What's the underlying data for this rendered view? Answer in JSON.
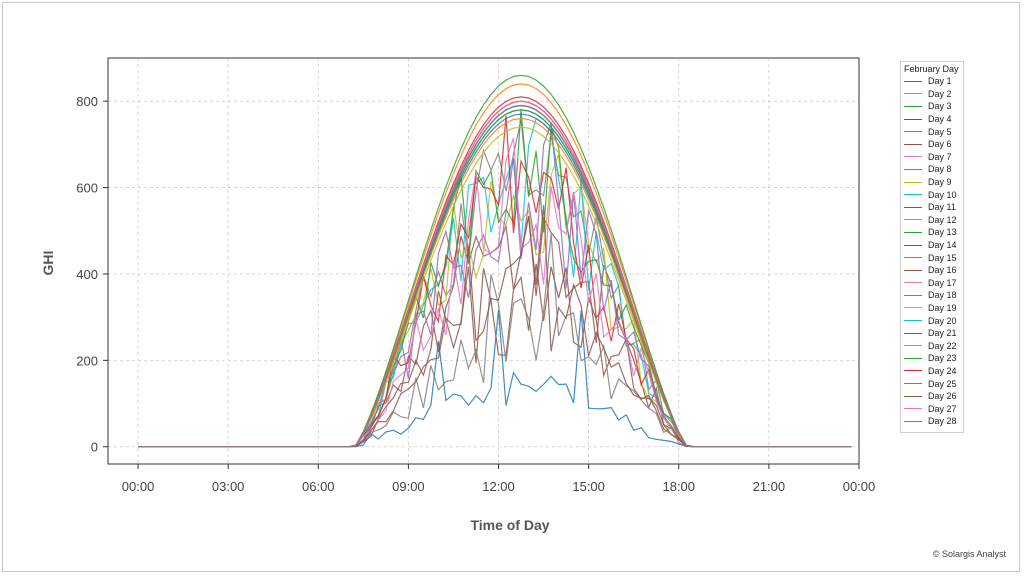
{
  "credit": "© Solargis Analyst",
  "chart_data": {
    "type": "line",
    "title": "",
    "xlabel": "Time of Day",
    "ylabel": "GHI",
    "xlim": [
      -1,
      24
    ],
    "ylim": [
      -40,
      900
    ],
    "x_ticks": [
      {
        "value": 0,
        "label": "00:00"
      },
      {
        "value": 3,
        "label": "03:00"
      },
      {
        "value": 6,
        "label": "06:00"
      },
      {
        "value": 9,
        "label": "09:00"
      },
      {
        "value": 12,
        "label": "12:00"
      },
      {
        "value": 15,
        "label": "15:00"
      },
      {
        "value": 18,
        "label": "18:00"
      },
      {
        "value": 21,
        "label": "21:00"
      },
      {
        "value": 24,
        "label": "00:00"
      }
    ],
    "y_ticks": [
      0,
      200,
      400,
      600,
      800
    ],
    "grid": true,
    "legend": {
      "title": "February Day",
      "placement": "right"
    },
    "series": [
      {
        "name": "Day 1",
        "color": "#1f77b4",
        "peak": 790,
        "cloud": 0.0,
        "clear_frac": 1.0
      },
      {
        "name": "Day 2",
        "color": "#ff7f0e",
        "peak": 840,
        "cloud": 0.0,
        "clear_frac": 1.0
      },
      {
        "name": "Day 3",
        "color": "#2ca02c",
        "peak": 860,
        "cloud": 0.0,
        "clear_frac": 1.0
      },
      {
        "name": "Day 4",
        "color": "#d62728",
        "peak": 810,
        "cloud": 0.0,
        "clear_frac": 1.0
      },
      {
        "name": "Day 5",
        "color": "#9467bd",
        "peak": 800,
        "cloud": 0.0,
        "clear_frac": 1.0
      },
      {
        "name": "Day 6",
        "color": "#8c564b",
        "peak": 740,
        "cloud": 0.55,
        "clear_frac": 0.55
      },
      {
        "name": "Day 7",
        "color": "#e377c2",
        "peak": 780,
        "cloud": 0.0,
        "clear_frac": 1.0
      },
      {
        "name": "Day 8",
        "color": "#7f7f7f",
        "peak": 760,
        "cloud": 0.35,
        "clear_frac": 0.9
      },
      {
        "name": "Day 9",
        "color": "#bcbd22",
        "peak": 750,
        "cloud": 0.45,
        "clear_frac": 0.85
      },
      {
        "name": "Day 10",
        "color": "#17becf",
        "peak": 770,
        "cloud": 0.4,
        "clear_frac": 0.9
      },
      {
        "name": "Day 11",
        "color": "#1f77b4",
        "peak": 780,
        "cloud": 0.9,
        "clear_frac": 0.15
      },
      {
        "name": "Day 12",
        "color": "#ff7f0e",
        "peak": 790,
        "cloud": 0.0,
        "clear_frac": 1.0
      },
      {
        "name": "Day 13",
        "color": "#2ca02c",
        "peak": 780,
        "cloud": 0.4,
        "clear_frac": 0.85
      },
      {
        "name": "Day 14",
        "color": "#d62728",
        "peak": 800,
        "cloud": 0.5,
        "clear_frac": 0.7
      },
      {
        "name": "Day 15",
        "color": "#9467bd",
        "peak": 790,
        "cloud": 0.5,
        "clear_frac": 0.8
      },
      {
        "name": "Day 16",
        "color": "#8c564b",
        "peak": 780,
        "cloud": 0.75,
        "clear_frac": 0.45
      },
      {
        "name": "Day 17",
        "color": "#e377c2",
        "peak": 760,
        "cloud": 0.55,
        "clear_frac": 0.75
      },
      {
        "name": "Day 18",
        "color": "#7f7f7f",
        "peak": 780,
        "cloud": 0.8,
        "clear_frac": 0.3
      },
      {
        "name": "Day 19",
        "color": "#bcbd22",
        "peak": 740,
        "cloud": 0.0,
        "clear_frac": 1.0
      },
      {
        "name": "Day 20",
        "color": "#17becf",
        "peak": 780,
        "cloud": 0.0,
        "clear_frac": 1.0
      },
      {
        "name": "Day 21",
        "color": "#1f77b4",
        "peak": 770,
        "cloud": 0.0,
        "clear_frac": 1.0
      },
      {
        "name": "Day 22",
        "color": "#ff7f0e",
        "peak": 760,
        "cloud": 0.0,
        "clear_frac": 1.0
      },
      {
        "name": "Day 23",
        "color": "#2ca02c",
        "peak": 780,
        "cloud": 0.0,
        "clear_frac": 1.0
      },
      {
        "name": "Day 24",
        "color": "#d62728",
        "peak": 800,
        "cloud": 0.0,
        "clear_frac": 1.0
      },
      {
        "name": "Day 25",
        "color": "#9467bd",
        "peak": 790,
        "cloud": 0.0,
        "clear_frac": 1.0
      },
      {
        "name": "Day 26",
        "color": "#8c564b",
        "peak": 770,
        "cloud": 0.7,
        "clear_frac": 0.4
      },
      {
        "name": "Day 27",
        "color": "#e377c2",
        "peak": 800,
        "cloud": 0.0,
        "clear_frac": 1.0
      },
      {
        "name": "Day 28",
        "color": "#7f7f7f",
        "peak": 790,
        "cloud": 0.0,
        "clear_frac": 1.0
      }
    ]
  }
}
